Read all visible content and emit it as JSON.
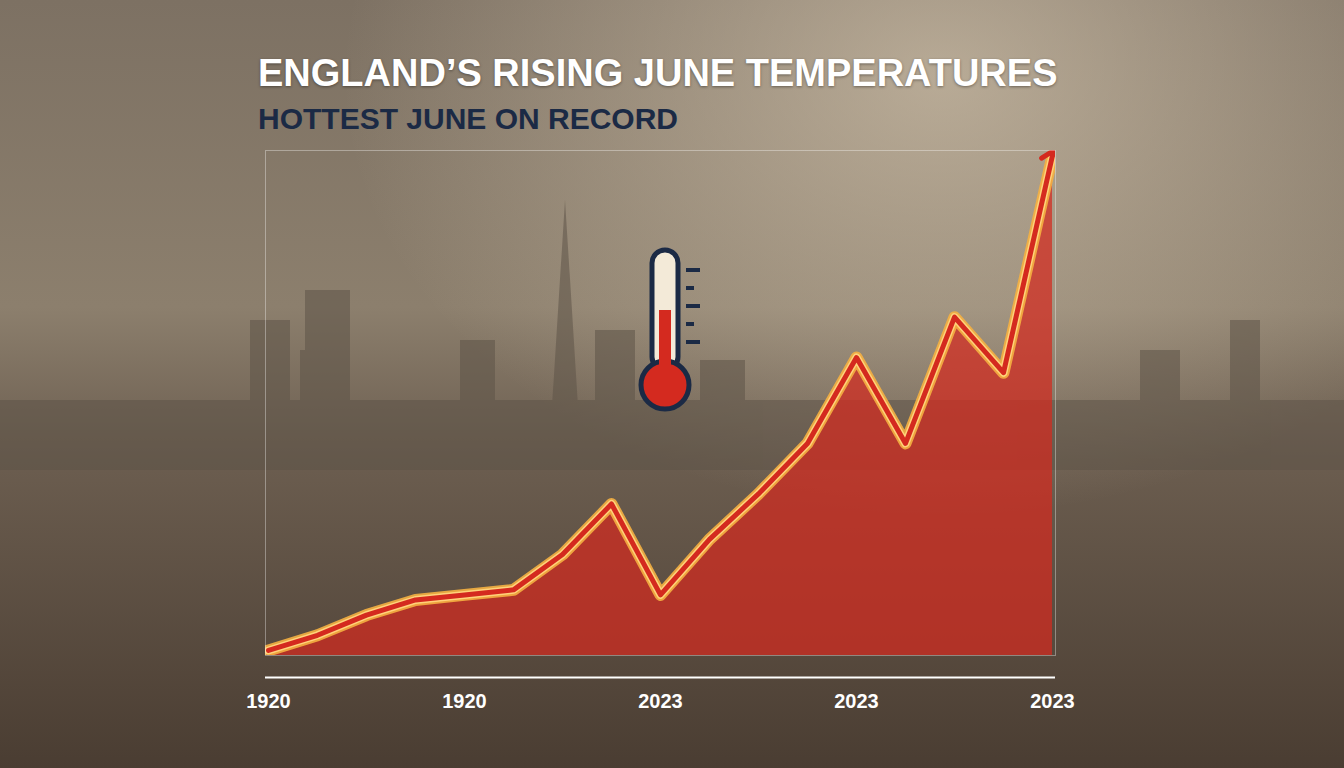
{
  "chart_data": {
    "type": "line",
    "title": "ENGLAND’S RISING JUNE TEMPERATURES",
    "subtitle": "HOTTEST JUNE ON RECORD",
    "categories": [
      "1920",
      null,
      null,
      null,
      "1920",
      null,
      null,
      null,
      "2023",
      null,
      null,
      null,
      "2023",
      null,
      null,
      null,
      "2023"
    ],
    "values": [
      1,
      4,
      8,
      11,
      12,
      13,
      20,
      30,
      12,
      23,
      32,
      42,
      59,
      42,
      67,
      56,
      99
    ],
    "color": "#d42a1f",
    "marker": "arrow",
    "ylim": [
      0,
      100
    ],
    "yticks": [],
    "tick_labels": "x",
    "grid": false
  }
}
